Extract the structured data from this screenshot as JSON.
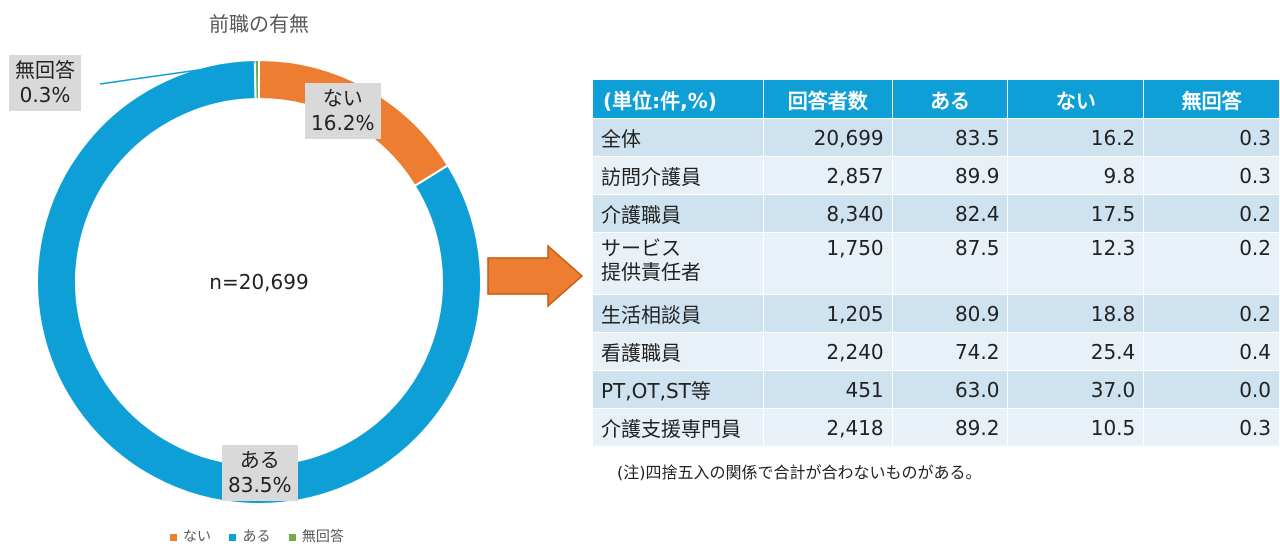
{
  "chart_data": {
    "type": "pie",
    "title": "前職の有無",
    "center_label": "n=20,699",
    "categories": [
      "ない",
      "ある",
      "無回答"
    ],
    "values": [
      16.2,
      83.5,
      0.3
    ],
    "colors": [
      "#ed7d31",
      "#0e9fd6",
      "#70ad47"
    ],
    "data_labels": [
      {
        "category": "ない",
        "value": "16.2%"
      },
      {
        "category": "ある",
        "value": "83.5%"
      },
      {
        "category": "無回答",
        "value": "0.3%"
      }
    ],
    "legend": {
      "placement": "bottom",
      "entries": [
        "ない",
        "ある",
        "無回答"
      ]
    }
  },
  "table": {
    "headers": [
      "(単位:件,%)",
      "回答者数",
      "ある",
      "ない",
      "無回答"
    ],
    "rows": [
      {
        "name": "全体",
        "n": "20,699",
        "aru": "83.5",
        "nai": "16.2",
        "noans": "0.3"
      },
      {
        "name": "訪問介護員",
        "n": "2,857",
        "aru": "89.9",
        "nai": "9.8",
        "noans": "0.3"
      },
      {
        "name": "介護職員",
        "n": "8,340",
        "aru": "82.4",
        "nai": "17.5",
        "noans": "0.2"
      },
      {
        "name_line1": "サービス",
        "name_line2": "提供責任者",
        "n": "1,750",
        "aru": "87.5",
        "nai": "12.3",
        "noans": "0.2"
      },
      {
        "name": "生活相談員",
        "n": "1,205",
        "aru": "80.9",
        "nai": "18.8",
        "noans": "0.2"
      },
      {
        "name": "看護職員",
        "n": "2,240",
        "aru": "74.2",
        "nai": "25.4",
        "noans": "0.4"
      },
      {
        "name": "PT,OT,ST等",
        "n": "451",
        "aru": "63.0",
        "nai": "37.0",
        "noans": "0.0"
      },
      {
        "name": "介護支援専門員",
        "n": "2,418",
        "aru": "89.2",
        "nai": "10.5",
        "noans": "0.3"
      }
    ]
  },
  "note": "(注)四捨五入の関係で合計が合わないものがある。"
}
